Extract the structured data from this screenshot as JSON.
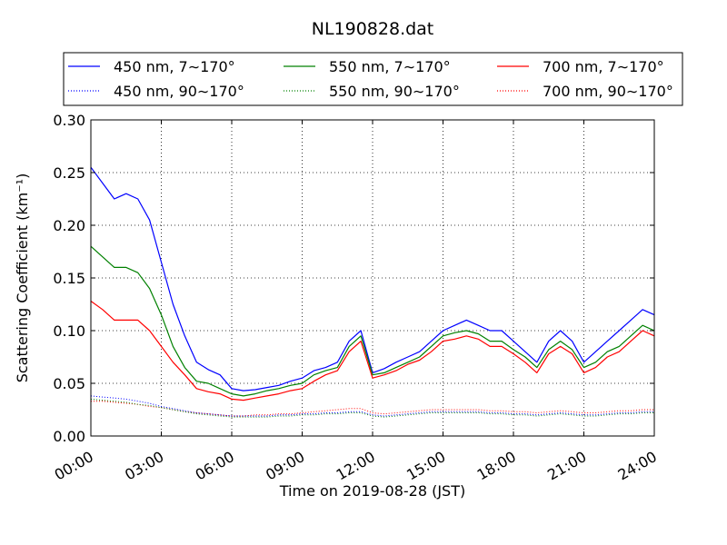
{
  "chart_data": {
    "type": "line",
    "title": "NL190828.dat",
    "xlabel": "Time on 2019-08-28 (JST)",
    "ylabel": "Scattering Coefficient (km⁻¹)",
    "x_unit": "hours",
    "xlim": [
      0,
      24
    ],
    "ylim": [
      0,
      0.3
    ],
    "x_ticks": [
      "00:00",
      "03:00",
      "06:00",
      "09:00",
      "12:00",
      "15:00",
      "18:00",
      "21:00",
      "24:00"
    ],
    "y_ticks": [
      "0.00",
      "0.05",
      "0.10",
      "0.15",
      "0.20",
      "0.25",
      "0.30"
    ],
    "grid": true,
    "legend_position": "top",
    "x": [
      0,
      0.5,
      1,
      1.5,
      2,
      2.5,
      3,
      3.5,
      4,
      4.5,
      5,
      5.5,
      6,
      6.5,
      7,
      7.5,
      8,
      8.5,
      9,
      9.5,
      10,
      10.5,
      11,
      11.5,
      12,
      12.5,
      13,
      13.5,
      14,
      14.5,
      15,
      15.5,
      16,
      16.5,
      17,
      17.5,
      18,
      18.5,
      19,
      19.5,
      20,
      20.5,
      21,
      21.5,
      22,
      22.5,
      23,
      23.5,
      24
    ],
    "series": [
      {
        "name": "450 nm, 7∼170°",
        "color": "#0000ff",
        "style": "solid",
        "values": [
          0.255,
          0.24,
          0.225,
          0.23,
          0.225,
          0.205,
          0.165,
          0.125,
          0.095,
          0.07,
          0.063,
          0.058,
          0.045,
          0.043,
          0.044,
          0.046,
          0.048,
          0.052,
          0.055,
          0.062,
          0.065,
          0.07,
          0.09,
          0.1,
          0.06,
          0.064,
          0.07,
          0.075,
          0.08,
          0.09,
          0.1,
          0.105,
          0.11,
          0.105,
          0.1,
          0.1,
          0.09,
          0.08,
          0.07,
          0.09,
          0.1,
          0.09,
          0.07,
          0.08,
          0.09,
          0.1,
          0.11,
          0.12,
          0.115
        ]
      },
      {
        "name": "550 nm, 7∼170°",
        "color": "#008000",
        "style": "solid",
        "values": [
          0.18,
          0.17,
          0.16,
          0.16,
          0.155,
          0.14,
          0.115,
          0.085,
          0.065,
          0.052,
          0.05,
          0.045,
          0.04,
          0.038,
          0.04,
          0.043,
          0.045,
          0.048,
          0.05,
          0.058,
          0.062,
          0.065,
          0.085,
          0.095,
          0.058,
          0.06,
          0.065,
          0.07,
          0.075,
          0.085,
          0.095,
          0.098,
          0.1,
          0.097,
          0.09,
          0.09,
          0.082,
          0.075,
          0.065,
          0.082,
          0.09,
          0.082,
          0.065,
          0.07,
          0.08,
          0.085,
          0.095,
          0.105,
          0.1
        ]
      },
      {
        "name": "700 nm, 7∼170°",
        "color": "#ff0000",
        "style": "solid",
        "values": [
          0.128,
          0.12,
          0.11,
          0.11,
          0.11,
          0.1,
          0.085,
          0.07,
          0.058,
          0.045,
          0.042,
          0.04,
          0.035,
          0.034,
          0.036,
          0.038,
          0.04,
          0.043,
          0.045,
          0.052,
          0.058,
          0.062,
          0.08,
          0.09,
          0.055,
          0.058,
          0.062,
          0.068,
          0.072,
          0.08,
          0.09,
          0.092,
          0.095,
          0.092,
          0.085,
          0.085,
          0.078,
          0.07,
          0.06,
          0.078,
          0.085,
          0.078,
          0.06,
          0.065,
          0.075,
          0.08,
          0.09,
          0.1,
          0.095
        ]
      },
      {
        "name": "450 nm, 90∼170°",
        "color": "#0000ff",
        "style": "dotted",
        "values": [
          0.038,
          0.037,
          0.036,
          0.035,
          0.033,
          0.031,
          0.028,
          0.026,
          0.024,
          0.022,
          0.021,
          0.02,
          0.019,
          0.019,
          0.019,
          0.019,
          0.02,
          0.02,
          0.021,
          0.021,
          0.022,
          0.022,
          0.023,
          0.023,
          0.02,
          0.019,
          0.02,
          0.021,
          0.022,
          0.023,
          0.023,
          0.023,
          0.023,
          0.023,
          0.022,
          0.022,
          0.021,
          0.021,
          0.02,
          0.021,
          0.022,
          0.021,
          0.02,
          0.02,
          0.021,
          0.022,
          0.022,
          0.023,
          0.023
        ]
      },
      {
        "name": "550 nm, 90∼170°",
        "color": "#008000",
        "style": "dotted",
        "values": [
          0.035,
          0.034,
          0.033,
          0.032,
          0.03,
          0.029,
          0.027,
          0.025,
          0.023,
          0.021,
          0.02,
          0.019,
          0.018,
          0.018,
          0.018,
          0.018,
          0.019,
          0.019,
          0.02,
          0.02,
          0.021,
          0.021,
          0.022,
          0.022,
          0.019,
          0.018,
          0.019,
          0.02,
          0.021,
          0.022,
          0.022,
          0.022,
          0.022,
          0.022,
          0.021,
          0.021,
          0.02,
          0.02,
          0.019,
          0.02,
          0.021,
          0.02,
          0.019,
          0.019,
          0.02,
          0.021,
          0.021,
          0.022,
          0.022
        ]
      },
      {
        "name": "700 nm, 90∼170°",
        "color": "#ff0000",
        "style": "dotted",
        "values": [
          0.033,
          0.033,
          0.032,
          0.031,
          0.03,
          0.028,
          0.027,
          0.025,
          0.023,
          0.022,
          0.021,
          0.02,
          0.019,
          0.019,
          0.02,
          0.02,
          0.021,
          0.021,
          0.022,
          0.023,
          0.024,
          0.025,
          0.026,
          0.026,
          0.022,
          0.021,
          0.022,
          0.023,
          0.024,
          0.025,
          0.025,
          0.025,
          0.025,
          0.025,
          0.024,
          0.024,
          0.023,
          0.023,
          0.022,
          0.023,
          0.024,
          0.023,
          0.022,
          0.022,
          0.023,
          0.024,
          0.024,
          0.025,
          0.025
        ]
      }
    ]
  }
}
